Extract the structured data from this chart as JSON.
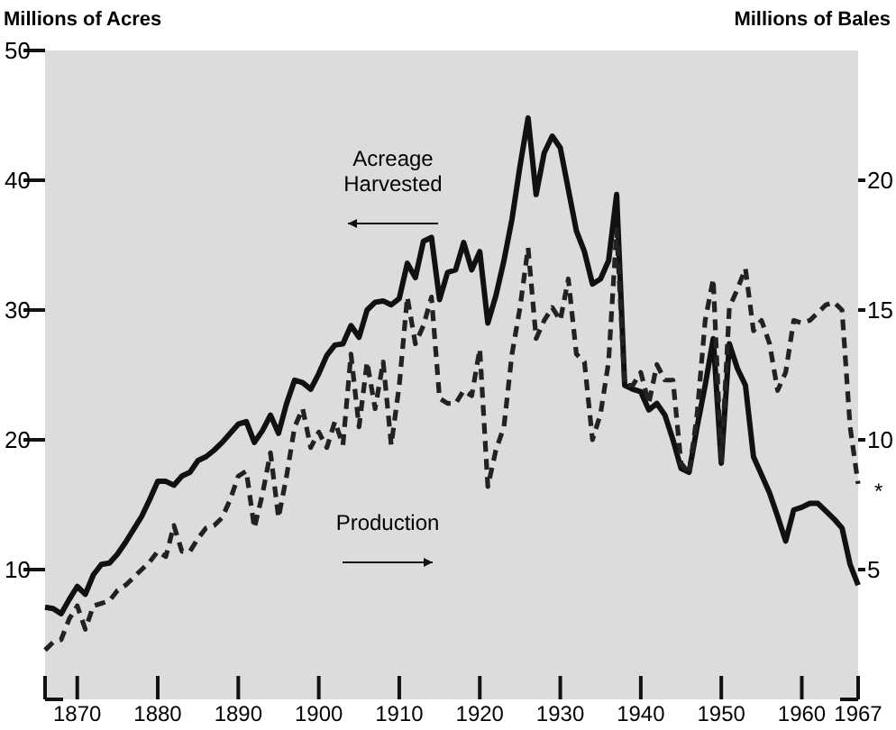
{
  "chart_data": {
    "type": "line",
    "ylabel": "Millions of Acres",
    "y2label": "Millions of Bales",
    "x": [
      1866,
      1867,
      1868,
      1869,
      1870,
      1871,
      1872,
      1873,
      1874,
      1875,
      1876,
      1877,
      1878,
      1879,
      1880,
      1881,
      1882,
      1883,
      1884,
      1885,
      1886,
      1887,
      1888,
      1889,
      1890,
      1891,
      1892,
      1893,
      1894,
      1895,
      1896,
      1897,
      1898,
      1899,
      1900,
      1901,
      1902,
      1903,
      1904,
      1905,
      1906,
      1907,
      1908,
      1909,
      1910,
      1911,
      1912,
      1913,
      1914,
      1915,
      1916,
      1917,
      1918,
      1919,
      1920,
      1921,
      1922,
      1923,
      1924,
      1925,
      1926,
      1927,
      1928,
      1929,
      1930,
      1931,
      1932,
      1933,
      1934,
      1935,
      1936,
      1937,
      1938,
      1939,
      1940,
      1941,
      1942,
      1943,
      1944,
      1945,
      1946,
      1947,
      1948,
      1949,
      1950,
      1951,
      1952,
      1953,
      1954,
      1955,
      1956,
      1957,
      1958,
      1959,
      1960,
      1961,
      1962,
      1963,
      1964,
      1965,
      1966,
      1967
    ],
    "series": [
      {
        "name": "Acreage Harvested",
        "color": "#111111",
        "line_style": "solid",
        "values": [
          7.1,
          7.0,
          6.6,
          7.7,
          8.7,
          8.1,
          9.6,
          10.4,
          10.5,
          11.2,
          12.1,
          13.1,
          14.1,
          15.4,
          16.8,
          16.8,
          16.5,
          17.2,
          17.5,
          18.4,
          18.7,
          19.2,
          19.8,
          20.5,
          21.2,
          21.4,
          19.8,
          20.7,
          21.9,
          20.5,
          22.8,
          24.6,
          24.4,
          23.9,
          25.1,
          26.5,
          27.3,
          27.4,
          28.8,
          27.9,
          30.0,
          30.6,
          30.7,
          30.4,
          30.9,
          33.6,
          32.5,
          35.3,
          35.6,
          30.8,
          32.9,
          33.1,
          35.2,
          33.1,
          34.5,
          29.0,
          31.1,
          33.8,
          37.0,
          41.1,
          44.8,
          38.9,
          42.1,
          43.4,
          42.5,
          39.3,
          36.1,
          34.5,
          32.0,
          32.4,
          33.8,
          38.9,
          24.2,
          23.9,
          23.7,
          22.3,
          22.8,
          21.9,
          20.0,
          17.8,
          17.5,
          21.0,
          24.2,
          27.8,
          18.2,
          27.4,
          25.5,
          24.2,
          18.7,
          17.3,
          15.9,
          14.1,
          12.2,
          14.6,
          14.8,
          15.1,
          15.1,
          14.5,
          13.9,
          13.2,
          10.4,
          8.8
        ]
      },
      {
        "name": "Production",
        "color": "#222222",
        "line_style": "dashed",
        "axis": "y2",
        "values": [
          1.9,
          2.2,
          2.3,
          3.1,
          3.6,
          2.7,
          3.6,
          3.7,
          3.8,
          4.2,
          4.4,
          4.7,
          5.0,
          5.3,
          5.7,
          5.5,
          6.7,
          5.7,
          5.7,
          6.2,
          6.6,
          6.7,
          7.0,
          7.7,
          8.6,
          8.8,
          6.6,
          7.9,
          9.5,
          7.0,
          8.6,
          10.5,
          11.2,
          9.7,
          10.3,
          9.7,
          10.7,
          9.8,
          13.3,
          10.5,
          13.0,
          11.2,
          13.0,
          9.8,
          12.1,
          15.5,
          13.7,
          14.4,
          15.5,
          11.6,
          11.4,
          11.4,
          11.9,
          11.7,
          13.5,
          8.2,
          9.6,
          10.5,
          13.3,
          15.1,
          17.4,
          13.9,
          14.6,
          15.1,
          14.6,
          16.2,
          13.3,
          13.0,
          10.0,
          11.0,
          13.0,
          18.1,
          12.1,
          12.1,
          12.6,
          11.4,
          12.9,
          12.3,
          12.3,
          9.1,
          8.7,
          11.0,
          14.6,
          16.2,
          9.1,
          15.1,
          15.8,
          16.6,
          14.2,
          14.6,
          13.7,
          11.9,
          12.6,
          14.6,
          14.5,
          14.6,
          14.9,
          15.2,
          15.3,
          15.0,
          10.5,
          8.3
        ]
      }
    ],
    "xlim": [
      1866,
      1967
    ],
    "xticks": [
      {
        "value": 1866,
        "label": null
      },
      1870,
      1880,
      1890,
      1900,
      1910,
      1920,
      1930,
      1940,
      1950,
      1960,
      1967
    ],
    "ylim": [
      0,
      50
    ],
    "yticks": [
      10,
      20,
      30,
      40,
      50
    ],
    "y2lim": [
      0,
      25
    ],
    "y2ticks": [
      5,
      10,
      15,
      20
    ],
    "annotations": [
      "*"
    ],
    "grid": false
  }
}
